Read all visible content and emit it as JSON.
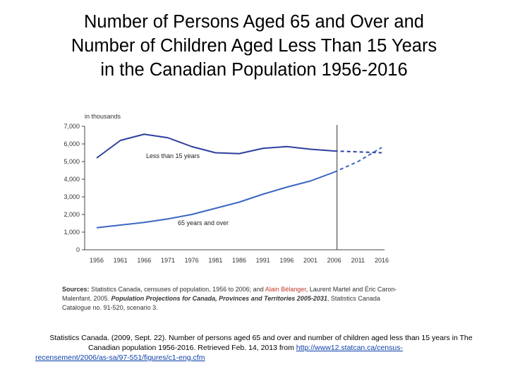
{
  "title": {
    "line1": "Number of Persons Aged 65 and Over and",
    "line2": "Number of Children Aged Less Than 15 Years",
    "line3": "in the Canadian Population 1956-2016"
  },
  "chart_data": {
    "type": "line",
    "title": "Number of Persons Aged 65 and Over and Number of Children Aged Less Than 15 Years in the Canadian Population 1956-2016",
    "unit_label": "in thousands",
    "ylim": [
      0,
      7000
    ],
    "yticks": [
      {
        "value": 0,
        "label": "0"
      },
      {
        "value": 1000,
        "label": "1,000"
      },
      {
        "value": 2000,
        "label": "2,000"
      },
      {
        "value": 3000,
        "label": "3,000"
      },
      {
        "value": 4000,
        "label": "4,000"
      },
      {
        "value": 5000,
        "label": "5,000"
      },
      {
        "value": 6000,
        "label": "6,000"
      },
      {
        "value": 7000,
        "label": "7,000"
      }
    ],
    "x": [
      1956,
      1961,
      1966,
      1971,
      1976,
      1981,
      1986,
      1991,
      1996,
      2001,
      2006,
      2011,
      2016
    ],
    "xticks": [
      "1956",
      "1961",
      "1966",
      "1971",
      "1976",
      "1981",
      "1986",
      "1991",
      "1996",
      "2001",
      "2006",
      "2011",
      "2016"
    ],
    "projection_start": 2006,
    "series": [
      {
        "name": "Less than 15 years",
        "color": "#2d3f9e",
        "values": [
          5200,
          6200,
          6550,
          6350,
          5850,
          5500,
          5450,
          5750,
          5850,
          5700,
          5600,
          5550,
          5500
        ]
      },
      {
        "name": "65 years and over",
        "color": "#3b66c4",
        "values": [
          1250,
          1400,
          1550,
          1750,
          2000,
          2350,
          2700,
          3150,
          3550,
          3900,
          4400,
          5000,
          5800
        ]
      }
    ]
  },
  "sources": {
    "label": "Sources:",
    "part1": "Statistics Canada, censuses of population, 1956 to 2006; and",
    "author": "Alain Bélanger",
    "part2": ", Laurent Martel and Éric Caron-Malenfant. 2005.",
    "book": "Population Projections for Canada, Provinces and Territories 2005-2031",
    "part3": ", Statistics Canada Catalogue no. 91-520, scenario 3."
  },
  "citation": {
    "line1": "Statistics Canada. (2009, Sept. 22). Number of persons aged 65 and over and number of children aged less than 15 years in The",
    "line2": "Canadian population 1956-2016. Retrieved Feb. 14, 2013 from",
    "url_part1": "http://www12.statcan.ca/census-",
    "url_part2": "recensement/2006/as-sa/97-551/figures/c1-eng.cfm"
  }
}
